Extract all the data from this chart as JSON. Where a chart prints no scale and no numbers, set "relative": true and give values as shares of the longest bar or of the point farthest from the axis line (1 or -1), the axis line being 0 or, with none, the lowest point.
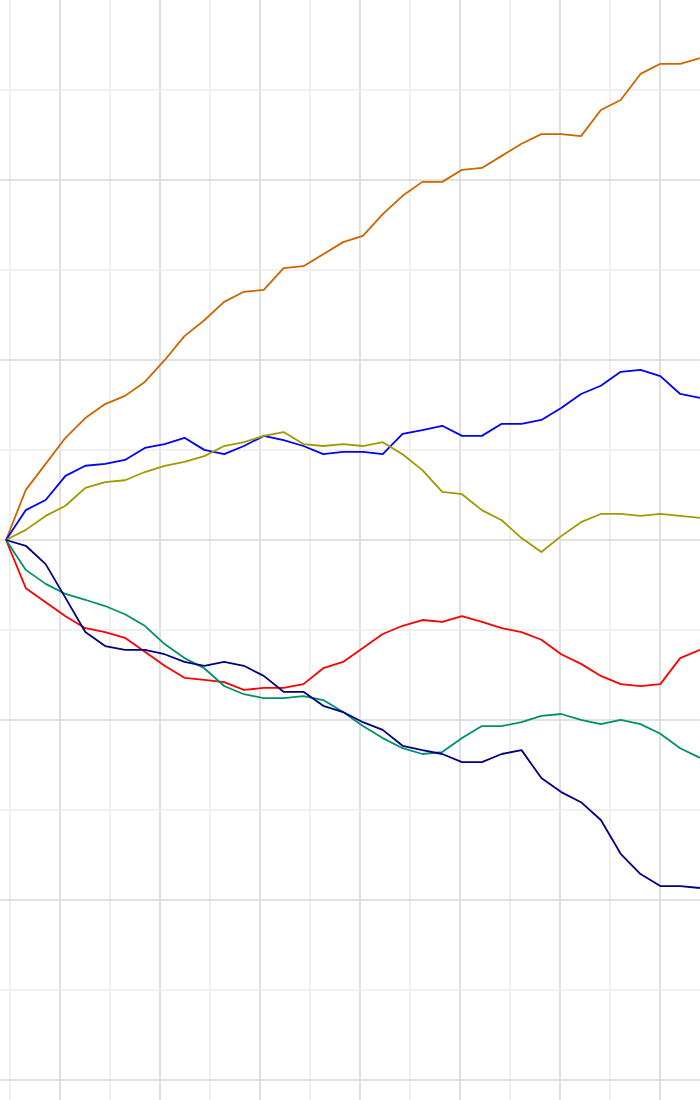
{
  "chart_data": {
    "type": "line",
    "relative": true,
    "grid": true,
    "line_style": "solid",
    "categories": [
      null,
      null,
      null,
      null,
      null,
      null,
      null,
      null,
      null,
      null,
      null,
      null,
      null,
      null,
      null,
      null,
      null,
      null,
      null,
      null,
      null,
      null,
      null,
      null,
      null,
      null,
      null,
      null,
      null,
      null,
      null,
      null,
      null,
      null,
      null,
      null
    ],
    "series": [
      {
        "color": "#cc6600",
        "values": [
          0,
          0.104,
          0.158,
          0.212,
          0.253,
          0.282,
          0.299,
          0.328,
          0.373,
          0.423,
          0.456,
          0.494,
          0.515,
          0.519,
          0.564,
          0.568,
          0.593,
          0.618,
          0.631,
          0.676,
          0.714,
          0.743,
          0.743,
          0.768,
          0.772,
          0.797,
          0.822,
          0.842,
          0.842,
          0.838,
          0.892,
          0.913,
          0.967,
          0.988,
          0.988,
          1
        ]
      },
      {
        "color": "#0000ff",
        "values": [
          0,
          0.062,
          0.083,
          0.133,
          0.154,
          0.158,
          0.166,
          0.191,
          0.199,
          0.212,
          0.187,
          0.178,
          0.195,
          0.216,
          0.207,
          0.195,
          0.178,
          0.183,
          0.183,
          0.178,
          0.22,
          0.228,
          0.237,
          0.216,
          0.216,
          0.241,
          0.241,
          0.249,
          0.274,
          0.303,
          0.32,
          0.349,
          0.353,
          0.34,
          0.303,
          0.295
        ]
      },
      {
        "color": "#a09a00",
        "values": [
          0,
          0.021,
          0.05,
          0.071,
          0.108,
          0.12,
          0.124,
          0.141,
          0.154,
          0.162,
          0.174,
          0.195,
          0.203,
          0.216,
          0.224,
          0.199,
          0.195,
          0.199,
          0.195,
          0.203,
          0.178,
          0.145,
          0.1,
          0.095,
          0.062,
          0.041,
          0.004,
          -0.025,
          0.008,
          0.037,
          0.054,
          0.054,
          0.05,
          0.054,
          0.05,
          0.046
        ]
      },
      {
        "color": "#ff0000",
        "values": [
          0,
          -0.1,
          -0.129,
          -0.158,
          -0.183,
          -0.191,
          -0.203,
          -0.232,
          -0.261,
          -0.286,
          -0.29,
          -0.295,
          -0.311,
          -0.307,
          -0.307,
          -0.299,
          -0.266,
          -0.253,
          -0.224,
          -0.195,
          -0.178,
          -0.166,
          -0.17,
          -0.158,
          -0.17,
          -0.183,
          -0.191,
          -0.207,
          -0.237,
          -0.257,
          -0.282,
          -0.299,
          -0.303,
          -0.299,
          -0.245,
          -0.228
        ]
      },
      {
        "color": "#00906a",
        "values": [
          0,
          -0.062,
          -0.091,
          -0.112,
          -0.124,
          -0.137,
          -0.154,
          -0.178,
          -0.216,
          -0.245,
          -0.266,
          -0.303,
          -0.32,
          -0.328,
          -0.328,
          -0.324,
          -0.332,
          -0.357,
          -0.386,
          -0.411,
          -0.432,
          -0.444,
          -0.44,
          -0.411,
          -0.386,
          -0.386,
          -0.378,
          -0.365,
          -0.361,
          -0.373,
          -0.382,
          -0.373,
          -0.382,
          -0.402,
          -0.432,
          -0.452
        ]
      },
      {
        "color": "#000080",
        "values": [
          0,
          -0.012,
          -0.05,
          -0.12,
          -0.191,
          -0.22,
          -0.228,
          -0.228,
          -0.237,
          -0.253,
          -0.261,
          -0.253,
          -0.261,
          -0.282,
          -0.315,
          -0.315,
          -0.344,
          -0.357,
          -0.378,
          -0.394,
          -0.427,
          -0.436,
          -0.444,
          -0.461,
          -0.461,
          -0.444,
          -0.436,
          -0.494,
          -0.523,
          -0.544,
          -0.581,
          -0.651,
          -0.693,
          -0.718,
          -0.718,
          -0.722
        ]
      }
    ]
  }
}
